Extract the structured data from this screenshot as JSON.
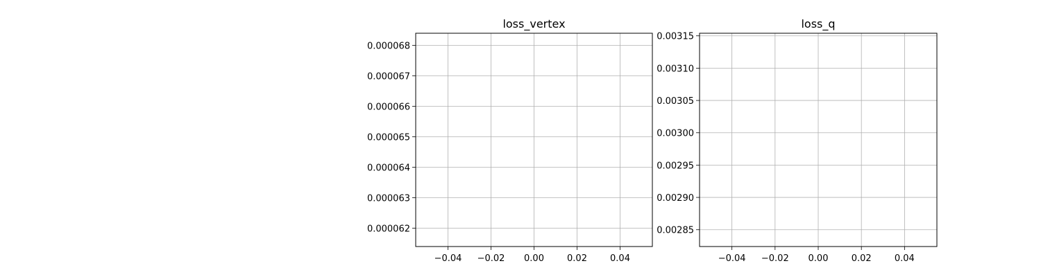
{
  "chart_data": [
    {
      "type": "line",
      "title": "loss_vertex",
      "xlabel": "",
      "ylabel": "",
      "xlim": [
        -0.055,
        0.055
      ],
      "ylim": [
        6.14e-05,
        6.84e-05
      ],
      "xticks": [
        -0.04,
        -0.02,
        0.0,
        0.02,
        0.04
      ],
      "xtick_labels": [
        "−0.04",
        "−0.02",
        "0.00",
        "0.02",
        "0.04"
      ],
      "yticks": [
        6.2e-05,
        6.3e-05,
        6.4e-05,
        6.5e-05,
        6.6e-05,
        6.7e-05,
        6.8e-05
      ],
      "ytick_labels": [
        "0.000062",
        "0.000063",
        "0.000064",
        "0.000065",
        "0.000066",
        "0.000067",
        "0.000068"
      ],
      "grid": true,
      "series": [
        {
          "values": []
        }
      ]
    },
    {
      "type": "line",
      "title": "loss_q",
      "xlabel": "",
      "ylabel": "",
      "xlim": [
        -0.055,
        0.055
      ],
      "ylim": [
        0.002824,
        0.003154
      ],
      "xticks": [
        -0.04,
        -0.02,
        0.0,
        0.02,
        0.04
      ],
      "xtick_labels": [
        "−0.04",
        "−0.02",
        "0.00",
        "0.02",
        "0.04"
      ],
      "yticks": [
        0.00285,
        0.0029,
        0.00295,
        0.003,
        0.00305,
        0.0031,
        0.00315
      ],
      "ytick_labels": [
        "0.00285",
        "0.00290",
        "0.00295",
        "0.00300",
        "0.00305",
        "0.00310",
        "0.00315"
      ],
      "grid": true,
      "series": [
        {
          "values": []
        }
      ]
    }
  ],
  "colors": {
    "grid": "#b0b0b0",
    "axes": "#000000",
    "background": "#ffffff"
  }
}
